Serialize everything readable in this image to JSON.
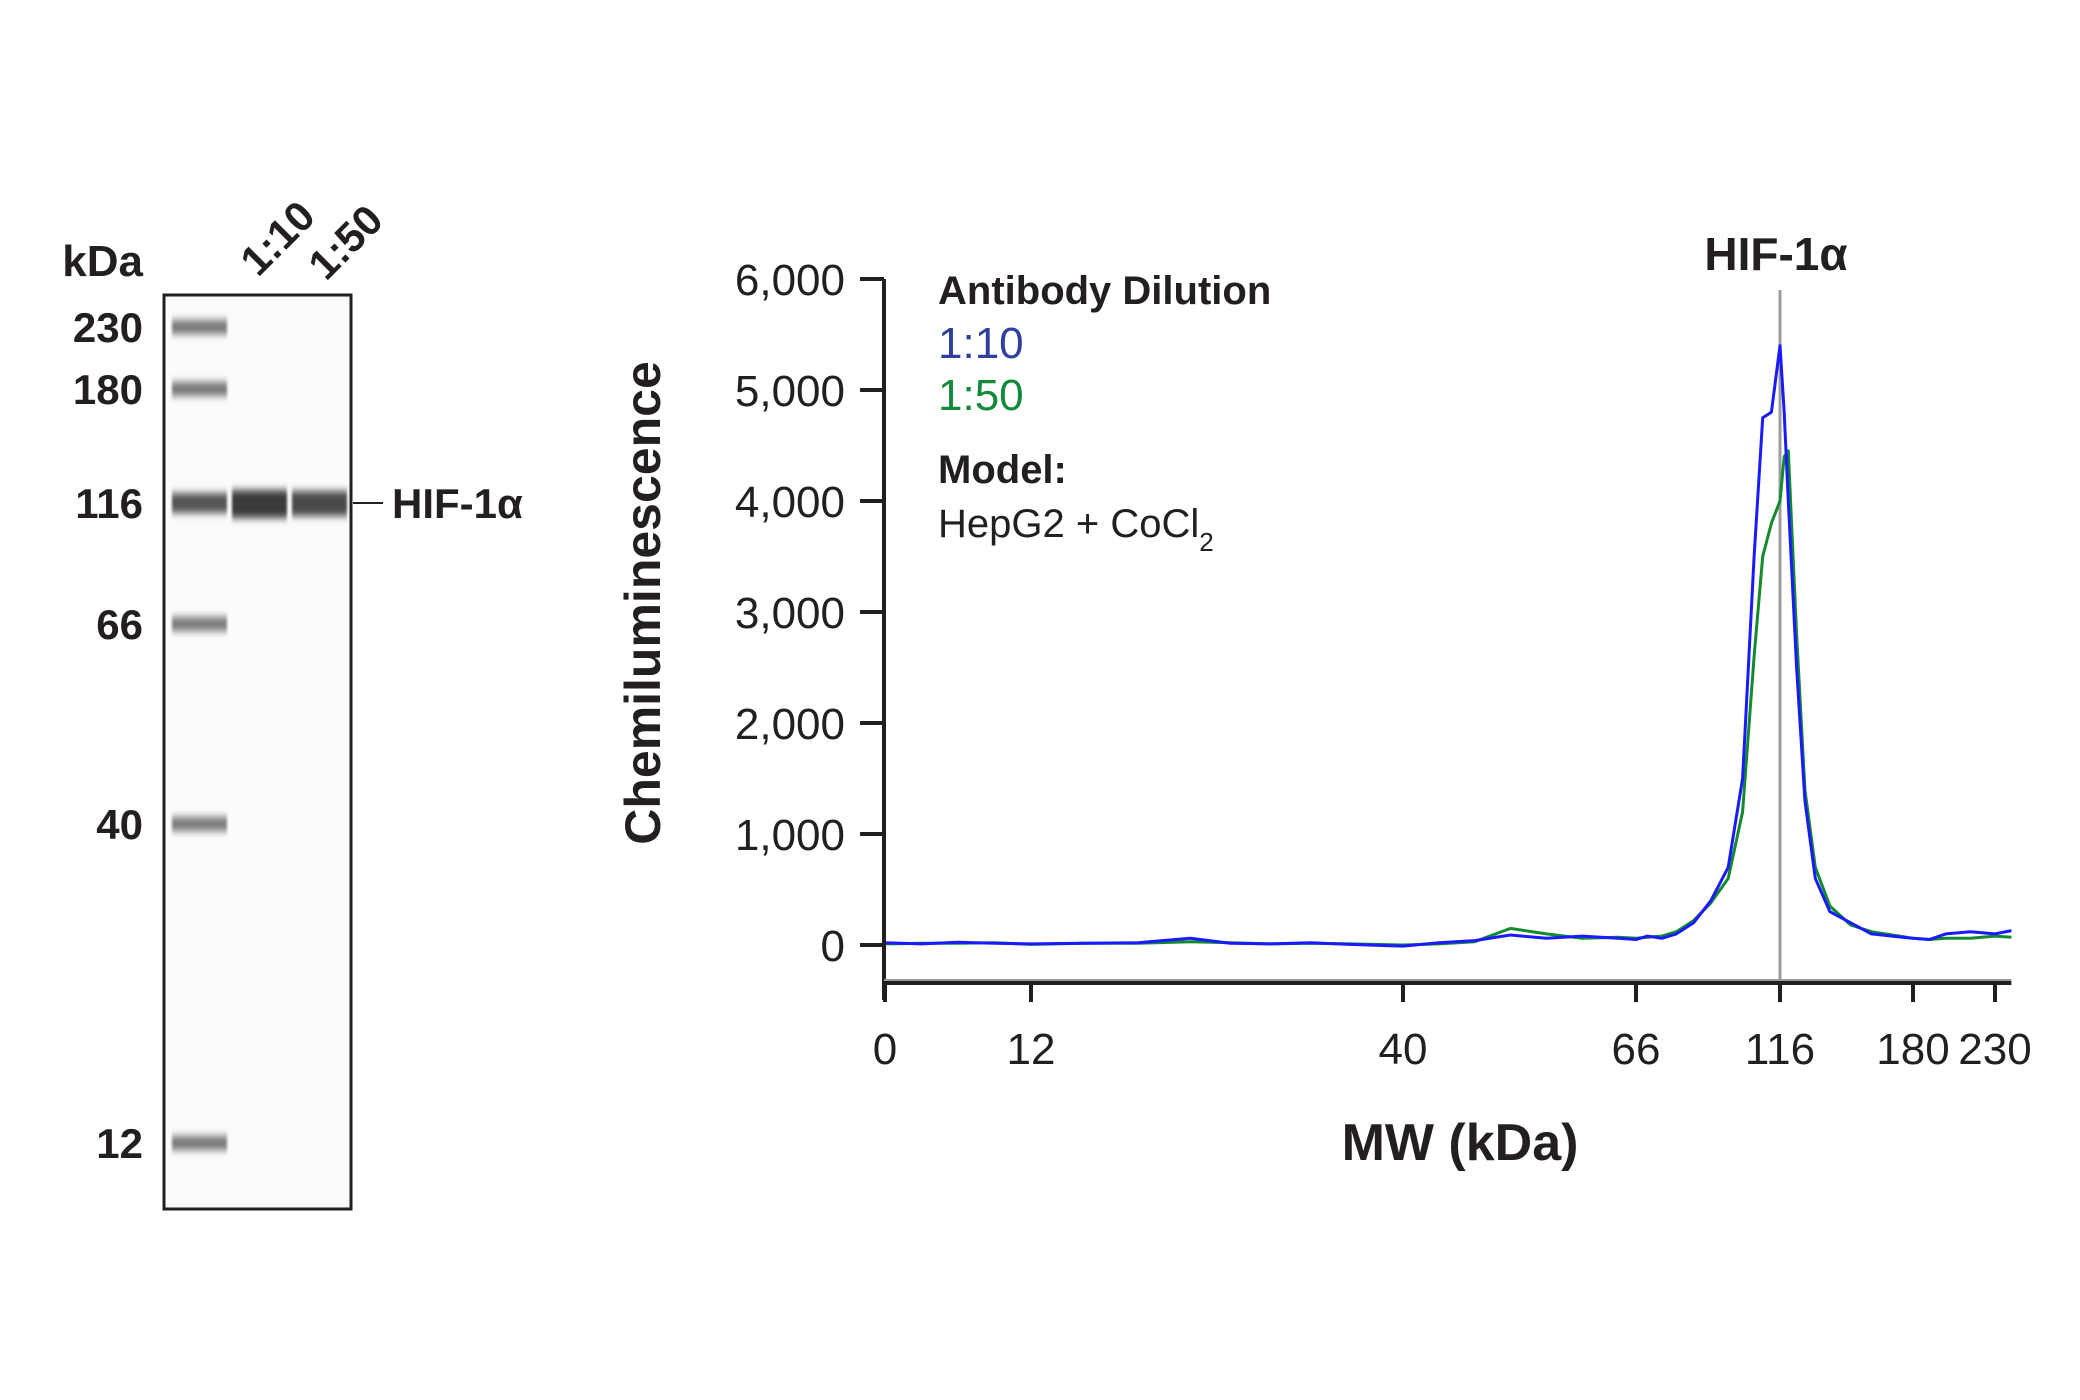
{
  "blot": {
    "unit_label": "kDa",
    "lane_labels": [
      "1:10",
      "1:50"
    ],
    "marker_labels": [
      "230",
      "180",
      "116",
      "66",
      "40",
      "12"
    ],
    "band_label": "HIF-1α"
  },
  "chart_data": {
    "type": "line",
    "title": "HIF-1α",
    "xlabel": "MW (kDa)",
    "ylabel": "Chemiluminescence",
    "x_ticks": [
      0,
      12,
      40,
      66,
      116,
      180,
      230
    ],
    "x_tick_labels": [
      "0",
      "12",
      "40",
      "66",
      "116",
      "180",
      "230"
    ],
    "y_ticks": [
      0,
      1000,
      2000,
      3000,
      4000,
      5000,
      6000
    ],
    "y_tick_labels": [
      "0",
      "1,000",
      "2,000",
      "3,000",
      "4,000",
      "5,000",
      "6,000"
    ],
    "ylim": [
      -300,
      6000
    ],
    "xlim": [
      0,
      240
    ],
    "marker_line_kDa": 116,
    "legend": {
      "title": "Antibody Dilution",
      "model_title": "Model:",
      "model_text": "HepG2 + CoCl",
      "model_subscript": "2",
      "placement": "top-left"
    },
    "series": [
      {
        "name": "1:10",
        "color": "#1a1aff",
        "label_color": "#2e3f9e",
        "points": [
          [
            0,
            20
          ],
          [
            3,
            10
          ],
          [
            6,
            25
          ],
          [
            9,
            15
          ],
          [
            12,
            10
          ],
          [
            16,
            15
          ],
          [
            20,
            20
          ],
          [
            24,
            60
          ],
          [
            27,
            15
          ],
          [
            30,
            10
          ],
          [
            33,
            20
          ],
          [
            36,
            5
          ],
          [
            40,
            -10
          ],
          [
            44,
            20
          ],
          [
            48,
            40
          ],
          [
            52,
            90
          ],
          [
            56,
            60
          ],
          [
            60,
            80
          ],
          [
            64,
            60
          ],
          [
            66,
            50
          ],
          [
            70,
            80
          ],
          [
            75,
            60
          ],
          [
            80,
            100
          ],
          [
            86,
            200
          ],
          [
            92,
            400
          ],
          [
            98,
            700
          ],
          [
            103,
            1500
          ],
          [
            107,
            3500
          ],
          [
            110,
            4750
          ],
          [
            113,
            4800
          ],
          [
            116,
            5400
          ],
          [
            118,
            4800
          ],
          [
            120,
            4000
          ],
          [
            124,
            2500
          ],
          [
            128,
            1300
          ],
          [
            133,
            600
          ],
          [
            140,
            300
          ],
          [
            150,
            200
          ],
          [
            160,
            100
          ],
          [
            170,
            80
          ],
          [
            180,
            60
          ],
          [
            190,
            50
          ],
          [
            200,
            100
          ],
          [
            215,
            120
          ],
          [
            230,
            100
          ],
          [
            240,
            130
          ]
        ]
      },
      {
        "name": "1:50",
        "color": "#138a2e",
        "label_color": "#138a3a",
        "points": [
          [
            0,
            10
          ],
          [
            3,
            15
          ],
          [
            6,
            15
          ],
          [
            9,
            20
          ],
          [
            12,
            5
          ],
          [
            16,
            15
          ],
          [
            20,
            15
          ],
          [
            24,
            30
          ],
          [
            27,
            20
          ],
          [
            30,
            10
          ],
          [
            33,
            15
          ],
          [
            36,
            10
          ],
          [
            40,
            0
          ],
          [
            44,
            10
          ],
          [
            48,
            30
          ],
          [
            52,
            150
          ],
          [
            56,
            100
          ],
          [
            60,
            60
          ],
          [
            64,
            70
          ],
          [
            66,
            60
          ],
          [
            70,
            70
          ],
          [
            75,
            80
          ],
          [
            80,
            120
          ],
          [
            86,
            220
          ],
          [
            92,
            380
          ],
          [
            98,
            600
          ],
          [
            103,
            1200
          ],
          [
            107,
            2600
          ],
          [
            110,
            3500
          ],
          [
            113,
            3800
          ],
          [
            116,
            4000
          ],
          [
            118,
            4400
          ],
          [
            120,
            4450
          ],
          [
            124,
            2800
          ],
          [
            128,
            1400
          ],
          [
            133,
            700
          ],
          [
            140,
            350
          ],
          [
            150,
            180
          ],
          [
            160,
            120
          ],
          [
            170,
            90
          ],
          [
            180,
            60
          ],
          [
            190,
            50
          ],
          [
            200,
            60
          ],
          [
            215,
            60
          ],
          [
            230,
            80
          ],
          [
            240,
            70
          ]
        ]
      }
    ]
  }
}
